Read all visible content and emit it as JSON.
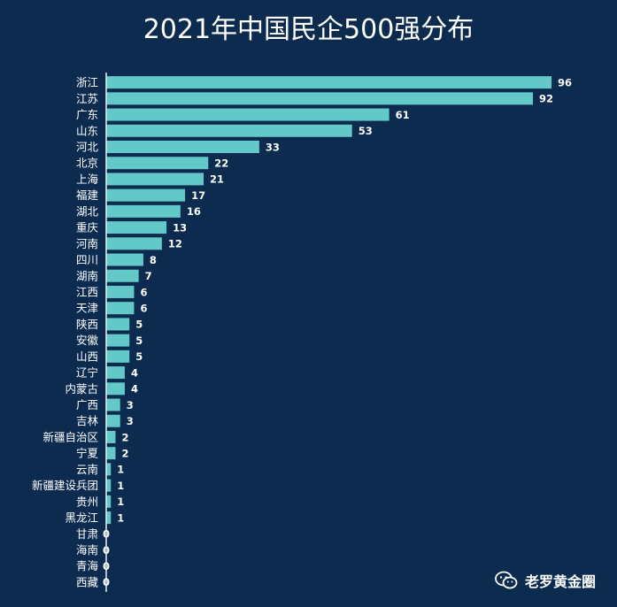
{
  "title": "2021年中国民企500强分布",
  "watermark": "老罗黄金圈",
  "colors": {
    "bar": "#63c8c8",
    "bar_stroke": "#0c2b4e",
    "background": "#0c2b4e",
    "axis": "#e8eef4"
  },
  "chart_data": {
    "type": "bar",
    "orientation": "horizontal",
    "title": "2021年中国民企500强分布",
    "xlabel": "",
    "ylabel": "",
    "xlim": [
      0,
      96
    ],
    "grid": false,
    "categories": [
      "浙江",
      "江苏",
      "广东",
      "山东",
      "河北",
      "北京",
      "上海",
      "福建",
      "湖北",
      "重庆",
      "河南",
      "四川",
      "湖南",
      "江西",
      "天津",
      "陕西",
      "安徽",
      "山西",
      "辽宁",
      "内蒙古",
      "广西",
      "吉林",
      "新疆自治区",
      "宁夏",
      "云南",
      "新疆建设兵团",
      "贵州",
      "黑龙江",
      "甘肃",
      "海南",
      "青海",
      "西藏"
    ],
    "values": [
      96,
      92,
      61,
      53,
      33,
      22,
      21,
      17,
      16,
      13,
      12,
      8,
      7,
      6,
      6,
      5,
      5,
      5,
      4,
      4,
      3,
      3,
      2,
      2,
      1,
      1,
      1,
      1,
      0,
      0,
      0,
      0
    ]
  }
}
